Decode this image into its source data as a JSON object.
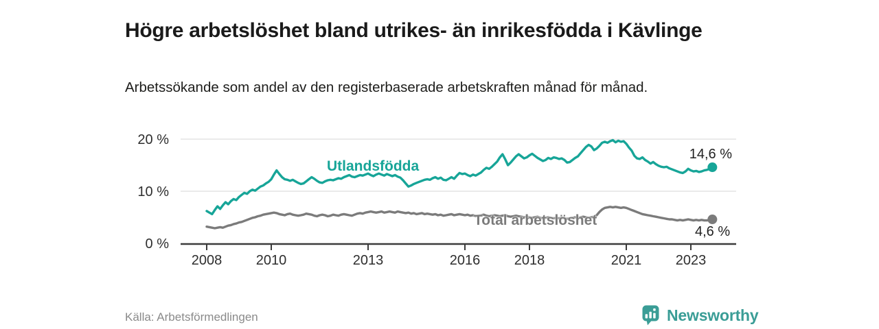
{
  "header": {
    "title": "Högre arbetslöshet bland utrikes- än inrikesfödda i Kävlinge",
    "subtitle": "Arbetssökande som andel av den registerbaserade arbetskraften månad för månad."
  },
  "chart_data": {
    "type": "line",
    "title": "Högre arbetslöshet bland utrikes- än inrikesfödda i Kävlinge",
    "subtitle": "Arbetssökande som andel av den registerbaserade arbetskraften månad för månad.",
    "grid": "horizontal-only",
    "legend_position": "inline-labels-on-lines",
    "ylim": [
      0,
      20
    ],
    "y_ticks": [
      {
        "value": 0,
        "label": "0 %"
      },
      {
        "value": 10,
        "label": "10 %"
      },
      {
        "value": 20,
        "label": "20 %"
      }
    ],
    "x_ticks": [
      {
        "year": 2008,
        "label": "2008"
      },
      {
        "year": 2010,
        "label": "2010"
      },
      {
        "year": 2013,
        "label": "2013"
      },
      {
        "year": 2016,
        "label": "2016"
      },
      {
        "year": 2018,
        "label": "2018"
      },
      {
        "year": 2021,
        "label": "2021"
      },
      {
        "year": 2023,
        "label": "2023"
      }
    ],
    "x_start_year": 2008,
    "points_per_year": 12,
    "series": [
      {
        "name": "Utlandsfödda",
        "color": "#17a598",
        "end_label": "14,6 %",
        "end_value": 14.6,
        "values": [
          6.2,
          5.9,
          5.6,
          6.4,
          7.1,
          6.6,
          7.3,
          7.9,
          7.5,
          8.1,
          8.5,
          8.3,
          8.9,
          9.3,
          9.7,
          9.5,
          10.0,
          10.3,
          10.1,
          10.5,
          10.9,
          11.1,
          11.5,
          11.8,
          12.3,
          13.2,
          14.0,
          13.3,
          12.7,
          12.3,
          12.2,
          12.0,
          12.2,
          11.9,
          11.6,
          11.4,
          11.5,
          11.9,
          12.3,
          12.7,
          12.4,
          12.0,
          11.7,
          11.6,
          11.9,
          12.1,
          12.2,
          12.1,
          12.3,
          12.5,
          12.4,
          12.7,
          12.9,
          13.1,
          12.8,
          12.7,
          12.9,
          13.1,
          13.0,
          13.2,
          13.4,
          13.1,
          12.9,
          13.2,
          13.4,
          13.2,
          13.0,
          13.3,
          13.1,
          12.9,
          13.1,
          12.8,
          12.6,
          12.1,
          11.5,
          10.9,
          11.1,
          11.4,
          11.6,
          11.8,
          12.0,
          12.2,
          12.3,
          12.2,
          12.5,
          12.7,
          12.4,
          12.6,
          12.2,
          12.1,
          12.4,
          12.7,
          12.4,
          13.0,
          13.5,
          13.3,
          13.4,
          13.1,
          12.9,
          13.2,
          13.0,
          13.3,
          13.6,
          14.1,
          14.5,
          14.3,
          14.7,
          15.2,
          15.7,
          16.5,
          17.1,
          16.1,
          15.0,
          15.5,
          16.1,
          16.7,
          17.1,
          16.7,
          16.3,
          16.5,
          16.9,
          17.2,
          16.8,
          16.4,
          16.1,
          15.8,
          16.0,
          16.4,
          16.2,
          16.5,
          16.4,
          16.2,
          16.3,
          16.0,
          15.5,
          15.6,
          16.0,
          16.4,
          16.7,
          17.3,
          17.9,
          18.5,
          18.9,
          18.6,
          17.9,
          18.2,
          18.7,
          19.3,
          19.5,
          19.3,
          19.6,
          19.8,
          19.4,
          19.7,
          19.5,
          19.6,
          19.1,
          18.4,
          17.8,
          16.8,
          16.3,
          16.2,
          16.5,
          16.0,
          15.7,
          15.3,
          15.6,
          15.2,
          14.9,
          14.7,
          14.6,
          14.7,
          14.4,
          14.2,
          14.0,
          13.8,
          13.6,
          13.5,
          13.8,
          14.3,
          14.0,
          13.8,
          13.9,
          13.7,
          13.8,
          14.0,
          14.1,
          14.3,
          14.6
        ]
      },
      {
        "name": "Total arbetslöshet",
        "color": "#7b7b7b",
        "end_label": "4,6 %",
        "end_value": 4.6,
        "values": [
          3.2,
          3.1,
          3.0,
          2.9,
          3.0,
          3.1,
          3.0,
          3.2,
          3.4,
          3.5,
          3.7,
          3.8,
          4.0,
          4.1,
          4.3,
          4.5,
          4.7,
          4.9,
          5.0,
          5.2,
          5.3,
          5.5,
          5.6,
          5.7,
          5.8,
          5.9,
          5.8,
          5.6,
          5.5,
          5.4,
          5.6,
          5.7,
          5.5,
          5.4,
          5.3,
          5.4,
          5.5,
          5.7,
          5.6,
          5.5,
          5.3,
          5.2,
          5.4,
          5.5,
          5.4,
          5.2,
          5.3,
          5.5,
          5.4,
          5.3,
          5.5,
          5.6,
          5.5,
          5.4,
          5.3,
          5.5,
          5.7,
          5.8,
          5.7,
          5.9,
          6.0,
          6.1,
          6.0,
          5.9,
          6.0,
          6.1,
          5.9,
          6.0,
          6.1,
          6.0,
          5.9,
          6.1,
          6.0,
          5.9,
          5.8,
          5.9,
          5.7,
          5.8,
          5.6,
          5.7,
          5.8,
          5.6,
          5.7,
          5.6,
          5.5,
          5.6,
          5.4,
          5.5,
          5.3,
          5.4,
          5.5,
          5.6,
          5.4,
          5.5,
          5.6,
          5.5,
          5.4,
          5.5,
          5.3,
          5.4,
          5.2,
          5.3,
          5.4,
          5.5,
          5.3,
          5.2,
          5.3,
          5.4,
          5.3,
          5.2,
          5.3,
          5.4,
          5.2,
          5.1,
          5.2,
          5.3,
          5.2,
          5.1,
          5.0,
          5.1,
          5.0,
          4.9,
          5.0,
          5.1,
          4.9,
          4.8,
          4.9,
          5.0,
          4.9,
          4.8,
          4.9,
          4.8,
          4.9,
          4.8,
          4.7,
          4.8,
          4.9,
          5.0,
          4.9,
          5.0,
          5.1,
          5.0,
          4.9,
          5.0,
          5.1,
          5.4,
          6.0,
          6.5,
          6.8,
          6.9,
          7.0,
          6.9,
          7.0,
          6.9,
          6.8,
          6.9,
          6.8,
          6.6,
          6.4,
          6.2,
          6.0,
          5.8,
          5.6,
          5.5,
          5.4,
          5.3,
          5.2,
          5.1,
          5.0,
          4.9,
          4.8,
          4.7,
          4.6,
          4.6,
          4.5,
          4.4,
          4.5,
          4.4,
          4.5,
          4.6,
          4.5,
          4.4,
          4.5,
          4.4,
          4.5,
          4.4,
          4.4,
          4.5,
          4.6
        ]
      }
    ]
  },
  "footer": {
    "source": "Källa: Arbetsförmedlingen",
    "logo_text": "Newsworthy",
    "logo_icon": "bar-chart-speech-bubble",
    "brand_color": "#3a9d96"
  }
}
